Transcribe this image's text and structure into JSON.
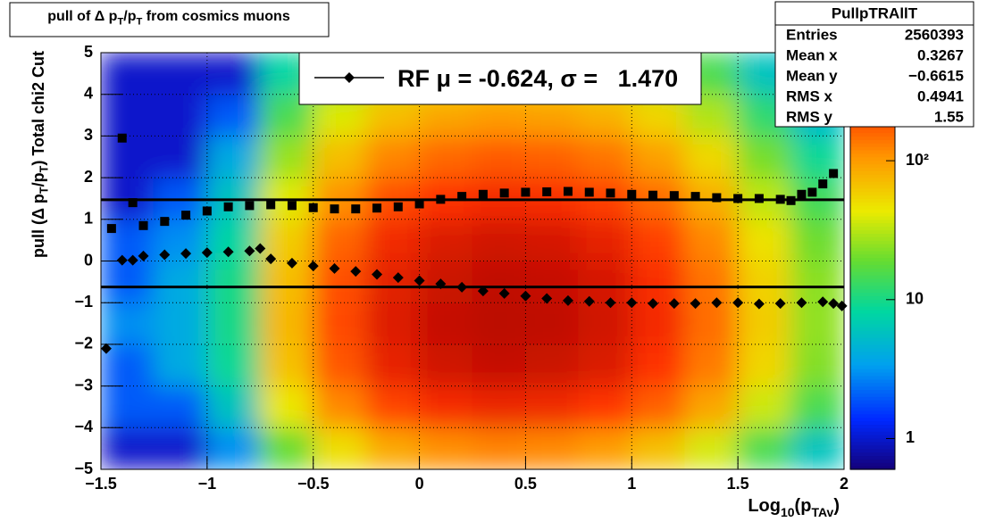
{
  "chart_data": {
    "type": "heatmap",
    "title_parts": [
      "pull of Δ p",
      "T",
      "/p",
      "T",
      " from cosmics muons"
    ],
    "x_label_parts": [
      "Log",
      "10",
      "(p",
      "TAv",
      ")"
    ],
    "y_label_parts": [
      "pull (Δ p",
      "T",
      "/p",
      "T",
      ")  Total chi2 Cut"
    ],
    "xlim": [
      -1.5,
      2
    ],
    "ylim": [
      -5,
      5
    ],
    "xticks": [
      {
        "value": -1.5,
        "label": "−1.5"
      },
      {
        "value": -1,
        "label": "−1"
      },
      {
        "value": -0.5,
        "label": "−0.5"
      },
      0,
      0.5,
      1,
      1.5,
      2
    ],
    "yticks": [
      {
        "value": -5,
        "label": "−5"
      },
      {
        "value": -4,
        "label": "−4"
      },
      {
        "value": -3,
        "label": "−3"
      },
      {
        "value": -2,
        "label": "−2"
      },
      {
        "value": -1,
        "label": "−1"
      },
      0,
      1,
      2,
      3,
      4,
      5
    ],
    "grid": true,
    "xbins": [
      -1.5,
      -1.25,
      -1,
      -0.75,
      -0.5,
      -0.25,
      0,
      0.25,
      0.5,
      0.75,
      1,
      1.25,
      1.5,
      1.75,
      2
    ],
    "ybins": [
      -5,
      -4,
      -3,
      -2,
      -1,
      0,
      1,
      2,
      3,
      4,
      5
    ],
    "values": [
      [
        1,
        1,
        3,
        19,
        50,
        88,
        113,
        125,
        119,
        100,
        69,
        38,
        15,
        6
      ],
      [
        2,
        2,
        6,
        45,
        120,
        210,
        270,
        300,
        285,
        240,
        165,
        90,
        36,
        15
      ],
      [
        2,
        4,
        9,
        68,
        180,
        315,
        405,
        450,
        428,
        360,
        248,
        135,
        54,
        23
      ],
      [
        3,
        4,
        10,
        75,
        200,
        350,
        450,
        500,
        475,
        400,
        275,
        150,
        60,
        25
      ],
      [
        2,
        4,
        10,
        71,
        190,
        333,
        428,
        475,
        451,
        380,
        261,
        143,
        57,
        24
      ],
      [
        2,
        3,
        8,
        60,
        160,
        280,
        360,
        400,
        380,
        320,
        220,
        120,
        48,
        20
      ],
      [
        1,
        2,
        6,
        41,
        110,
        193,
        248,
        275,
        261,
        220,
        151,
        83,
        33,
        14
      ],
      [
        1,
        1,
        4,
        26,
        70,
        123,
        158,
        175,
        166,
        140,
        96,
        53,
        21,
        9
      ],
      [
        1,
        1,
        2,
        15,
        40,
        70,
        90,
        100,
        95,
        80,
        55,
        30,
        12,
        5
      ],
      [
        1,
        1,
        1,
        8,
        20,
        35,
        45,
        50,
        48,
        40,
        28,
        15,
        6,
        3
      ]
    ],
    "zlog": true,
    "zlim": [
      0.6,
      600
    ],
    "zticks": [
      1,
      10,
      {
        "value": 100,
        "label": "10²"
      }
    ],
    "profiles": [
      {
        "marker": "square",
        "color": "#000000",
        "x": [
          -1.45,
          -1.4,
          -1.35,
          -1.3,
          -1.2,
          -1.1,
          -1.0,
          -0.9,
          -0.8,
          -0.7,
          -0.6,
          -0.5,
          -0.4,
          -0.3,
          -0.2,
          -0.1,
          0.0,
          0.1,
          0.2,
          0.3,
          0.4,
          0.5,
          0.6,
          0.7,
          0.8,
          0.9,
          1.0,
          1.1,
          1.2,
          1.3,
          1.4,
          1.5,
          1.6,
          1.7,
          1.75,
          1.8,
          1.85,
          1.9,
          1.95
        ],
        "values": [
          0.78,
          2.95,
          1.4,
          0.85,
          0.95,
          1.1,
          1.2,
          1.3,
          1.33,
          1.35,
          1.33,
          1.28,
          1.25,
          1.25,
          1.27,
          1.3,
          1.37,
          1.48,
          1.55,
          1.6,
          1.63,
          1.65,
          1.66,
          1.67,
          1.65,
          1.63,
          1.6,
          1.58,
          1.57,
          1.55,
          1.52,
          1.5,
          1.5,
          1.48,
          1.45,
          1.6,
          1.65,
          1.85,
          2.1
        ]
      },
      {
        "marker": "diamond",
        "color": "#000000",
        "x": [
          -1.475,
          -1.4,
          -1.35,
          -1.3,
          -1.2,
          -1.1,
          -1.0,
          -0.9,
          -0.8,
          -0.75,
          -0.7,
          -0.6,
          -0.5,
          -0.4,
          -0.3,
          -0.2,
          -0.1,
          0.0,
          0.1,
          0.2,
          0.3,
          0.4,
          0.5,
          0.6,
          0.7,
          0.8,
          0.9,
          1.0,
          1.1,
          1.2,
          1.3,
          1.4,
          1.5,
          1.6,
          1.7,
          1.8,
          1.9,
          1.95,
          1.99
        ],
        "values": [
          -2.1,
          0.02,
          0.02,
          0.12,
          0.15,
          0.18,
          0.2,
          0.22,
          0.24,
          0.3,
          0.05,
          -0.05,
          -0.12,
          -0.18,
          -0.25,
          -0.32,
          -0.4,
          -0.47,
          -0.55,
          -0.63,
          -0.72,
          -0.78,
          -0.84,
          -0.9,
          -0.95,
          -0.97,
          -1.0,
          -1.0,
          -1.02,
          -1.02,
          -1.02,
          -1.0,
          -1.0,
          -1.03,
          -1.02,
          -1.0,
          -0.98,
          -1.02,
          -1.08
        ]
      }
    ],
    "fit": {
      "legend": "RF μ = -0.624, σ =   1.470",
      "mu": -0.624,
      "sigma": 1.47,
      "color": "#000000"
    },
    "stats": {
      "title": "PullpTRAllT",
      "rows": [
        [
          "Entries",
          "2560393"
        ],
        [
          "Mean x",
          "0.3267"
        ],
        [
          "Mean y",
          "−0.6615"
        ],
        [
          "RMS x",
          "0.4941"
        ],
        [
          "RMS y",
          "1.55"
        ]
      ]
    }
  }
}
